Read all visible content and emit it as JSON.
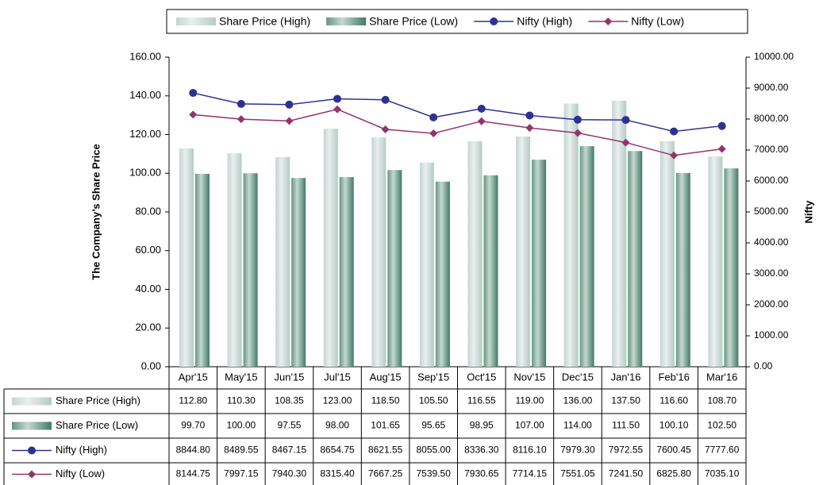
{
  "chart_data": {
    "type": "bar-line",
    "y_label": "The Company’s Share Price",
    "y2_label": "Nifty",
    "categories": [
      "Apr'15",
      "May'15",
      "Jun'15",
      "Jul'15",
      "Aug'15",
      "Sep'15",
      "Oct'15",
      "Nov'15",
      "Dec'15",
      "Jan'16",
      "Feb'16",
      "Mar'16"
    ],
    "series": [
      {
        "name": "Share Price (High)",
        "kind": "bar",
        "color": "#b4cbc5",
        "values": [
          112.8,
          110.3,
          108.35,
          123,
          118.5,
          105.5,
          116.55,
          119,
          136,
          137.5,
          116.6,
          108.7
        ],
        "value_labels": [
          "112.80",
          "110.30",
          "108.35",
          "123.00",
          "118.50",
          "105.50",
          "116.55",
          "119.00",
          "136.00",
          "137.50",
          "116.60",
          "108.70"
        ]
      },
      {
        "name": "Share Price (Low)",
        "kind": "bar",
        "color": "#3f7c64",
        "values": [
          99.7,
          100,
          97.55,
          98,
          101.65,
          95.65,
          98.95,
          107,
          114,
          111.5,
          100.1,
          102.5
        ],
        "value_labels": [
          "99.70",
          "100.00",
          "97.55",
          "98.00",
          "101.65",
          "95.65",
          "98.95",
          "107.00",
          "114.00",
          "111.50",
          "100.10",
          "102.50"
        ]
      },
      {
        "name": "Nifty (High)",
        "kind": "line",
        "axis": "y2",
        "color": "#2e3192",
        "marker": "circle",
        "values": [
          8844.8,
          8489.55,
          8467.15,
          8654.75,
          8621.55,
          8055,
          8336.3,
          8116.1,
          7979.3,
          7972.55,
          7600.45,
          7777.6
        ],
        "value_labels": [
          "8844.80",
          "8489.55",
          "8467.15",
          "8654.75",
          "8621.55",
          "8055.00",
          "8336.30",
          "8116.10",
          "7979.30",
          "7972.55",
          "7600.45",
          "7777.60"
        ]
      },
      {
        "name": "Nifty (Low)",
        "kind": "line",
        "axis": "y2",
        "color": "#93336b",
        "marker": "diamond",
        "values": [
          8144.75,
          7997.15,
          7940.3,
          8315.4,
          7667.25,
          7539.5,
          7930.65,
          7714.15,
          7551.05,
          7241.5,
          6825.8,
          7035.1
        ],
        "value_labels": [
          "8144.75",
          "7997.15",
          "7940.30",
          "8315.40",
          "7667.25",
          "7539.50",
          "7930.65",
          "7714.15",
          "7551.05",
          "7241.50",
          "6825.80",
          "7035.10"
        ]
      }
    ],
    "ylim": [
      0,
      160
    ],
    "yticks": [
      {
        "value": 0,
        "label": "0.00"
      },
      {
        "value": 20,
        "label": "20.00"
      },
      {
        "value": 40,
        "label": "40.00"
      },
      {
        "value": 60,
        "label": "60.00"
      },
      {
        "value": 80,
        "label": "80.00"
      },
      {
        "value": 100,
        "label": "100.00"
      },
      {
        "value": 120,
        "label": "120.00"
      },
      {
        "value": 140,
        "label": "140.00"
      },
      {
        "value": 160,
        "label": "160.00"
      }
    ],
    "y2lim": [
      0,
      10000
    ],
    "y2ticks": [
      {
        "value": 0,
        "label": "0.00"
      },
      {
        "value": 1000,
        "label": "1000.00"
      },
      {
        "value": 2000,
        "label": "2000.00"
      },
      {
        "value": 3000,
        "label": "3000.00"
      },
      {
        "value": 4000,
        "label": "4000.00"
      },
      {
        "value": 5000,
        "label": "5000.00"
      },
      {
        "value": 6000,
        "label": "6000.00"
      },
      {
        "value": 7000,
        "label": "7000.00"
      },
      {
        "value": 8000,
        "label": "8000.00"
      },
      {
        "value": 9000,
        "label": "9000.00"
      },
      {
        "value": 10000,
        "label": "10000.00"
      }
    ],
    "legend": "top"
  }
}
